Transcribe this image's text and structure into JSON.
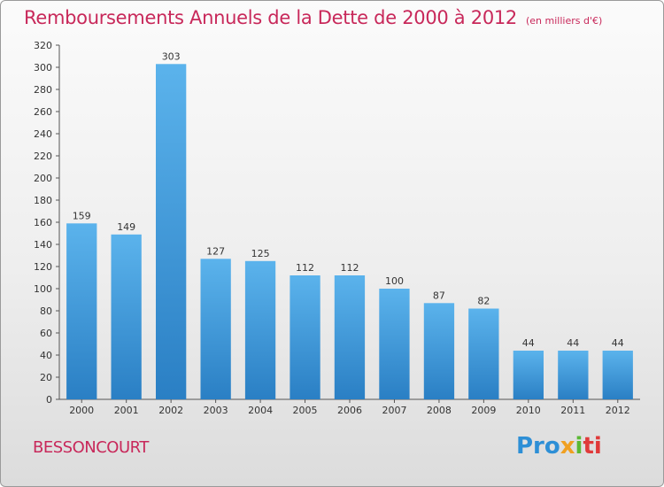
{
  "header": {
    "title": "Remboursements Annuels de la Dette de 2000 à 2012",
    "unit": "(en milliers d'€)"
  },
  "footer": {
    "place": "BESSONCOURT",
    "logo_parts": [
      "Pro",
      "x",
      "i",
      "ti"
    ]
  },
  "colors": {
    "title": "#c8285a",
    "bar_top": "#5bb3ec",
    "bar_bottom": "#2a7fc4"
  },
  "chart_data": {
    "type": "bar",
    "title": "Remboursements Annuels de la Dette de 2000 à 2012",
    "subtitle": "(en milliers d'€)",
    "xlabel": "",
    "ylabel": "",
    "categories": [
      "2000",
      "2001",
      "2002",
      "2003",
      "2004",
      "2005",
      "2006",
      "2007",
      "2008",
      "2009",
      "2010",
      "2011",
      "2012"
    ],
    "values": [
      159,
      149,
      303,
      127,
      125,
      112,
      112,
      100,
      87,
      82,
      44,
      44,
      44
    ],
    "ylim": [
      0,
      320
    ],
    "yticks": [
      0,
      20,
      40,
      60,
      80,
      100,
      120,
      140,
      160,
      180,
      200,
      220,
      240,
      260,
      280,
      300,
      320
    ],
    "grid": false,
    "data_labels": true
  }
}
